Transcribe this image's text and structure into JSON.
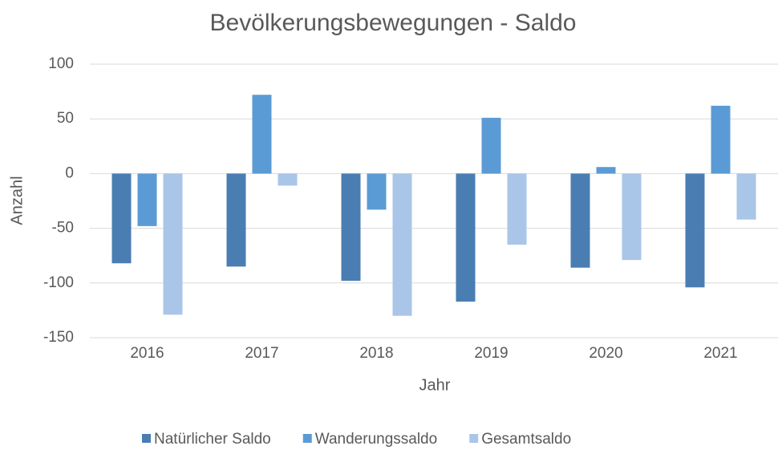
{
  "chart_data": {
    "type": "bar",
    "title": "Bevölkerungsbewegungen  - Saldo",
    "x_label": "Jahr",
    "y_label": "Anzahl",
    "categories": [
      "2016",
      "2017",
      "2018",
      "2019",
      "2020",
      "2021"
    ],
    "series": [
      {
        "name": "Natürlicher Saldo",
        "color": "#4a7eb3",
        "values": [
          -82,
          -85,
          -98,
          -117,
          -86,
          -104
        ]
      },
      {
        "name": "Wanderungssaldo",
        "color": "#5b9bd5",
        "values": [
          -48,
          72,
          -33,
          51,
          6,
          62
        ]
      },
      {
        "name": "Gesamtsaldo",
        "color": "#a9c6e8",
        "values": [
          -129,
          -11,
          -130,
          -65,
          -79,
          -42
        ]
      }
    ],
    "ylim": [
      -150,
      100
    ],
    "yticks": [
      -150,
      -100,
      -50,
      0,
      50,
      100
    ],
    "grid": true,
    "legend": "bottom"
  }
}
